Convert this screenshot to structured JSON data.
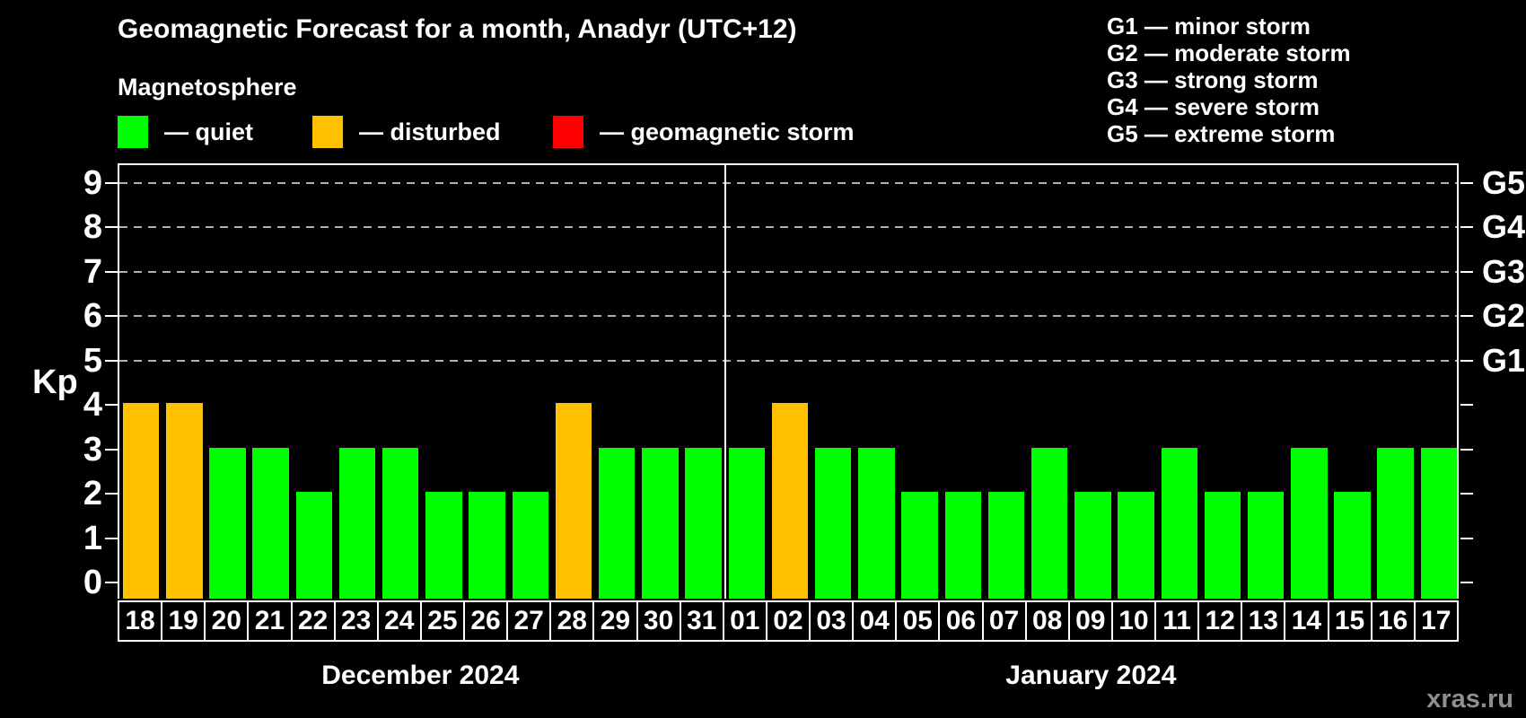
{
  "title": "Geomagnetic Forecast for a month, Anadyr (UTC+12)",
  "subtitle": "Magnetosphere",
  "legend": {
    "items": [
      {
        "status": "quiet",
        "label": "— quiet",
        "color": "#00ff00"
      },
      {
        "status": "disturbed",
        "label": "— disturbed",
        "color": "#ffc000"
      },
      {
        "status": "storm",
        "label": "— geomagnetic storm",
        "color": "#ff0000"
      }
    ]
  },
  "g_legend": [
    "G1 — minor storm",
    "G2 — moderate storm",
    "G3 — strong storm",
    "G4 — severe storm",
    "G5 — extreme storm"
  ],
  "watermark": "xras.ru",
  "chart_data": {
    "type": "bar",
    "ylabel_left": "Kp",
    "ylim": [
      -0.4,
      9.4
    ],
    "yticks": [
      0,
      1,
      2,
      3,
      4,
      5,
      6,
      7,
      8,
      9
    ],
    "gridlines": [
      5,
      6,
      7,
      8,
      9
    ],
    "grid_style": "dashed",
    "legend_position": "top",
    "right_axis": [
      {
        "value": 5,
        "label": "G1"
      },
      {
        "value": 6,
        "label": "G2"
      },
      {
        "value": 7,
        "label": "G3"
      },
      {
        "value": 8,
        "label": "G4"
      },
      {
        "value": 9,
        "label": "G5"
      }
    ],
    "months": [
      {
        "label": "December 2024",
        "days": 14
      },
      {
        "label": "January 2024",
        "days": 17
      }
    ],
    "colors": {
      "quiet": "#00ff00",
      "disturbed": "#ffc000",
      "storm": "#ff0000"
    },
    "bars": [
      {
        "day": "18",
        "value": 4,
        "status": "disturbed"
      },
      {
        "day": "19",
        "value": 4,
        "status": "disturbed"
      },
      {
        "day": "20",
        "value": 3,
        "status": "quiet"
      },
      {
        "day": "21",
        "value": 3,
        "status": "quiet"
      },
      {
        "day": "22",
        "value": 2,
        "status": "quiet"
      },
      {
        "day": "23",
        "value": 3,
        "status": "quiet"
      },
      {
        "day": "24",
        "value": 3,
        "status": "quiet"
      },
      {
        "day": "25",
        "value": 2,
        "status": "quiet"
      },
      {
        "day": "26",
        "value": 2,
        "status": "quiet"
      },
      {
        "day": "27",
        "value": 2,
        "status": "quiet"
      },
      {
        "day": "28",
        "value": 4,
        "status": "disturbed"
      },
      {
        "day": "29",
        "value": 3,
        "status": "quiet"
      },
      {
        "day": "30",
        "value": 3,
        "status": "quiet"
      },
      {
        "day": "31",
        "value": 3,
        "status": "quiet"
      },
      {
        "day": "01",
        "value": 3,
        "status": "quiet"
      },
      {
        "day": "02",
        "value": 4,
        "status": "disturbed"
      },
      {
        "day": "03",
        "value": 3,
        "status": "quiet"
      },
      {
        "day": "04",
        "value": 3,
        "status": "quiet"
      },
      {
        "day": "05",
        "value": 2,
        "status": "quiet"
      },
      {
        "day": "06",
        "value": 2,
        "status": "quiet"
      },
      {
        "day": "07",
        "value": 2,
        "status": "quiet"
      },
      {
        "day": "08",
        "value": 3,
        "status": "quiet"
      },
      {
        "day": "09",
        "value": 2,
        "status": "quiet"
      },
      {
        "day": "10",
        "value": 2,
        "status": "quiet"
      },
      {
        "day": "11",
        "value": 3,
        "status": "quiet"
      },
      {
        "day": "12",
        "value": 2,
        "status": "quiet"
      },
      {
        "day": "13",
        "value": 2,
        "status": "quiet"
      },
      {
        "day": "14",
        "value": 3,
        "status": "quiet"
      },
      {
        "day": "15",
        "value": 2,
        "status": "quiet"
      },
      {
        "day": "16",
        "value": 3,
        "status": "quiet"
      },
      {
        "day": "17",
        "value": 3,
        "status": "quiet"
      }
    ]
  }
}
